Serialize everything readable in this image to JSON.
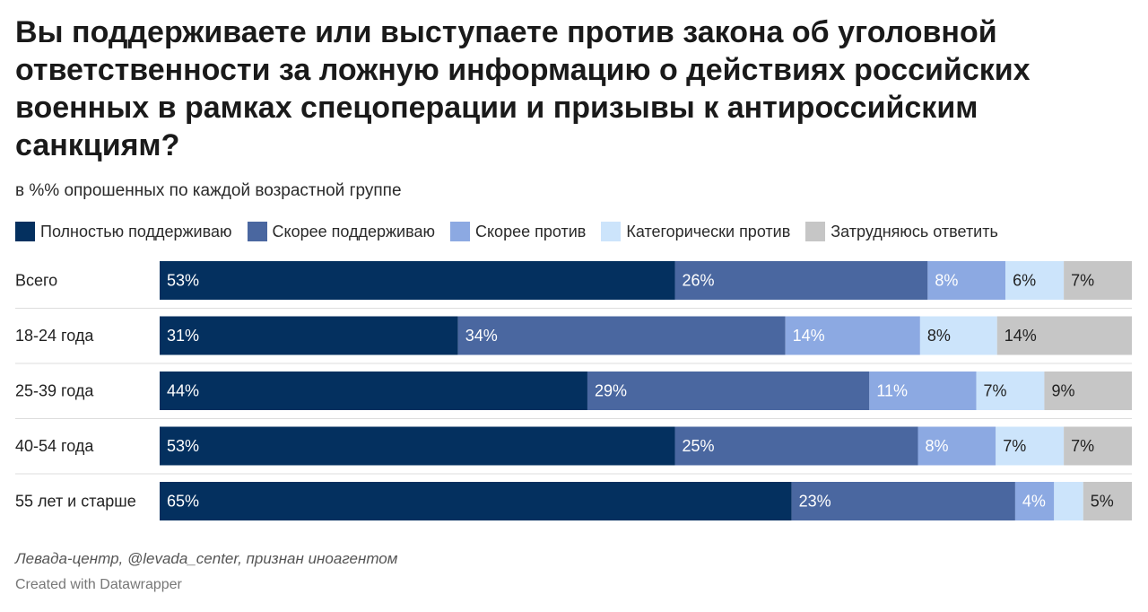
{
  "header": {
    "title": "Вы поддерживаете или выступаете против закона об уголовной ответственности за ложную информацию о действиях российских военных в рамках спецоперации и призывы к антироссийским санкциям?",
    "subtitle": "в %% опрошенных по каждой возрастной группе"
  },
  "footer": {
    "source": "Левада-центр, @levada_center, признан иноагентом",
    "credit": "Created with Datawrapper"
  },
  "chart_data": {
    "type": "bar",
    "orientation": "horizontal",
    "stacked": true,
    "title": "Вы поддерживаете или выступаете против закона об уголовной ответственности за ложную информацию о действиях российских военных в рамках спецоперации и призывы к антироссийским санкциям?",
    "subtitle": "в %% опрошенных по каждой возрастной группе",
    "unit": "%",
    "legend_position": "top-left",
    "categories": [
      "Всего",
      "18-24 года",
      "25-39 года",
      "40-54 года",
      "55 лет и старше"
    ],
    "series": [
      {
        "name": "Полностью поддерживаю",
        "color": "#04305f",
        "label_color": "#ffffff",
        "values": [
          53,
          31,
          44,
          53,
          65
        ],
        "labels": [
          "53%",
          "31%",
          "44%",
          "53%",
          "65%"
        ]
      },
      {
        "name": "Скорее поддерживаю",
        "color": "#4a67a0",
        "label_color": "#ffffff",
        "values": [
          26,
          34,
          29,
          25,
          23
        ],
        "labels": [
          "26%",
          "34%",
          "29%",
          "25%",
          "23%"
        ]
      },
      {
        "name": "Скорее против",
        "color": "#8ca9e2",
        "label_color": "#ffffff",
        "values": [
          8,
          14,
          11,
          8,
          4
        ],
        "labels": [
          "8%",
          "14%",
          "11%",
          "8%",
          "4%"
        ]
      },
      {
        "name": "Категорически против",
        "color": "#cce4fb",
        "label_color": "#222222",
        "values": [
          6,
          8,
          7,
          7,
          3
        ],
        "labels": [
          "6%",
          "8%",
          "7%",
          "7%",
          ""
        ]
      },
      {
        "name": "Затрудняюсь ответить",
        "color": "#c6c6c6",
        "label_color": "#222222",
        "values": [
          7,
          14,
          9,
          7,
          5
        ],
        "labels": [
          "7%",
          "14%",
          "9%",
          "7%",
          "5%"
        ]
      }
    ]
  }
}
